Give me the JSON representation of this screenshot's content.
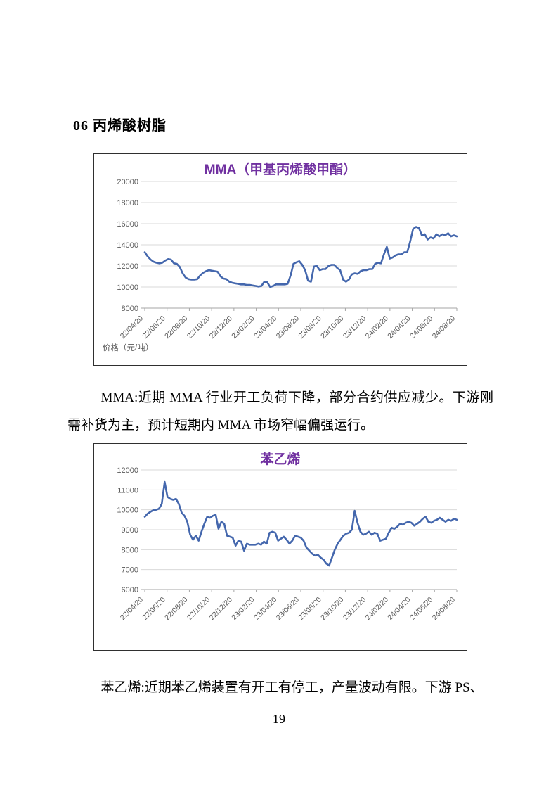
{
  "page": {
    "heading": "06 丙烯酸树脂",
    "mma_paragraph": "MMA:近期 MMA 行业开工负荷下降，部分合约供应减少。下游刚需补货为主，预计短期内 MMA 市场窄幅偏强运行。",
    "styrene_paragraph": "苯乙烯:近期苯乙烯装置有开工有停工，产量波动有限。下游 PS、",
    "page_number": "—19—"
  },
  "colors": {
    "line": "#4467AD",
    "title": "#7030A0",
    "axis_text": "#595959",
    "gridline": "#D9D9D9",
    "axis_line": "#A6A6A6"
  },
  "chart_data": [
    {
      "type": "line",
      "title": "MMA（甲基丙烯酸甲酯）",
      "axis_note": "价格（元/吨）",
      "ylabel": "价格（元/吨）",
      "ylim": [
        8000,
        20000
      ],
      "y_ticks": [
        20000,
        18000,
        16000,
        14000,
        12000,
        10000,
        8000
      ],
      "grid": true,
      "legend": "none",
      "x_tick_labels": [
        "22/04/20",
        "22/06/20",
        "22/08/20",
        "22/10/20",
        "22/12/20",
        "23/02/20",
        "23/04/20",
        "23/06/20",
        "23/08/20",
        "23/10/20",
        "23/12/20",
        "24/02/20",
        "24/04/20",
        "24/06/20",
        "24/08/20"
      ],
      "values": [
        13300,
        12900,
        12600,
        12400,
        12300,
        12250,
        12300,
        12500,
        12650,
        12600,
        12250,
        12200,
        11900,
        11300,
        10900,
        10750,
        10700,
        10700,
        10750,
        11100,
        11350,
        11500,
        11600,
        11550,
        11500,
        11450,
        11000,
        10800,
        10750,
        10500,
        10400,
        10350,
        10300,
        10250,
        10250,
        10200,
        10200,
        10150,
        10100,
        10050,
        10100,
        10500,
        10450,
        10000,
        10100,
        10250,
        10250,
        10250,
        10250,
        10300,
        11100,
        12200,
        12350,
        12450,
        12100,
        11600,
        10600,
        10500,
        11950,
        12000,
        11600,
        11700,
        11700,
        12000,
        12100,
        12100,
        11800,
        11600,
        10700,
        10500,
        10700,
        11200,
        11300,
        11250,
        11500,
        11600,
        11600,
        11700,
        11700,
        12200,
        12300,
        12250,
        13100,
        13800,
        12700,
        12800,
        13000,
        13100,
        13100,
        13300,
        13300,
        14300,
        15500,
        15700,
        15600,
        14900,
        15000,
        14500,
        14700,
        14600,
        15000,
        14800,
        15000,
        14900,
        15100,
        14800,
        14900,
        14800
      ]
    },
    {
      "type": "line",
      "title": "苯乙烯",
      "axis_note": "",
      "ylabel": "",
      "ylim": [
        6000,
        12000
      ],
      "y_ticks": [
        12000,
        11000,
        10000,
        9000,
        8000,
        7000,
        6000
      ],
      "grid": true,
      "legend": "none",
      "x_tick_labels": [
        "22/04/20",
        "22/06/20",
        "22/08/20",
        "22/10/20",
        "22/12/20",
        "23/02/20",
        "23/04/20",
        "23/06/20",
        "23/08/20",
        "23/10/20",
        "23/12/20",
        "24/02/20",
        "24/04/20",
        "24/06/20",
        "24/08/20"
      ],
      "values": [
        9650,
        9800,
        9900,
        9980,
        10000,
        10050,
        10300,
        11400,
        10650,
        10550,
        10500,
        10550,
        10300,
        9850,
        9700,
        9400,
        8750,
        8500,
        8700,
        8450,
        8900,
        9300,
        9650,
        9600,
        9700,
        9750,
        9050,
        9400,
        9300,
        8700,
        8650,
        8600,
        8200,
        8450,
        8400,
        7950,
        8300,
        8250,
        8250,
        8250,
        8300,
        8250,
        8400,
        8300,
        8850,
        8900,
        8850,
        8450,
        8550,
        8650,
        8500,
        8300,
        8450,
        8700,
        8650,
        8600,
        8450,
        8100,
        7950,
        7800,
        7700,
        7750,
        7600,
        7500,
        7300,
        7200,
        7600,
        8000,
        8300,
        8500,
        8700,
        8800,
        8850,
        9000,
        9950,
        9350,
        8900,
        8750,
        8800,
        8900,
        8750,
        8850,
        8800,
        8450,
        8500,
        8550,
        8850,
        9100,
        9050,
        9150,
        9300,
        9250,
        9350,
        9400,
        9350,
        9200,
        9300,
        9400,
        9550,
        9650,
        9400,
        9350,
        9450,
        9500,
        9600,
        9500,
        9400,
        9500,
        9450,
        9550,
        9500
      ]
    }
  ]
}
